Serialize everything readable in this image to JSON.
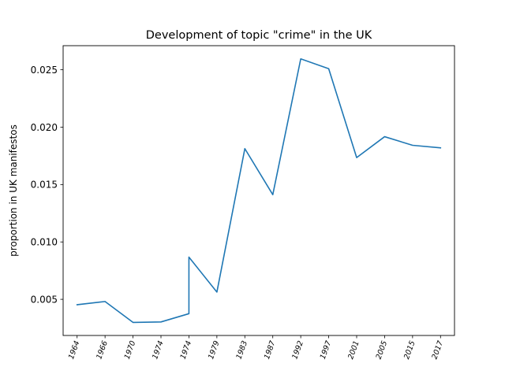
{
  "chart_data": {
    "type": "line",
    "title": "Development of topic \"crime\" in the UK",
    "xlabel": "",
    "ylabel": "proportion in UK manifestos",
    "categories": [
      "1964",
      "1966",
      "1970",
      "1974",
      "1974",
      "1979",
      "1983",
      "1987",
      "1992",
      "1997",
      "2001",
      "2005",
      "2015",
      "2017"
    ],
    "series": [
      {
        "color": "#1f77b4",
        "points": [
          {
            "x": 1964,
            "y": 0.00453
          },
          {
            "x": 1966,
            "y": 0.00481
          },
          {
            "x": 1970,
            "y": 0.00299
          },
          {
            "x": 1974,
            "y": 0.00303
          },
          {
            "x": 1974,
            "y": 0.00375
          },
          {
            "x": 1974.5,
            "y": 0.00868
          },
          {
            "x": 1979,
            "y": 0.00563
          },
          {
            "x": 1983,
            "y": 0.01813
          },
          {
            "x": 1987,
            "y": 0.01412
          },
          {
            "x": 1992,
            "y": 0.02595
          },
          {
            "x": 1997,
            "y": 0.02509
          },
          {
            "x": 2001,
            "y": 0.01735
          },
          {
            "x": 2005,
            "y": 0.01917
          },
          {
            "x": 2015,
            "y": 0.01842
          },
          {
            "x": 2017,
            "y": 0.0182
          }
        ]
      }
    ],
    "ytick_labels": [
      "0.005",
      "0.010",
      "0.015",
      "0.020",
      "0.025"
    ],
    "ytick_values": [
      0.005,
      0.01,
      0.015,
      0.02,
      0.025
    ],
    "ylim": [
      0.00185,
      0.0271
    ],
    "grid": false,
    "legend": "none"
  }
}
